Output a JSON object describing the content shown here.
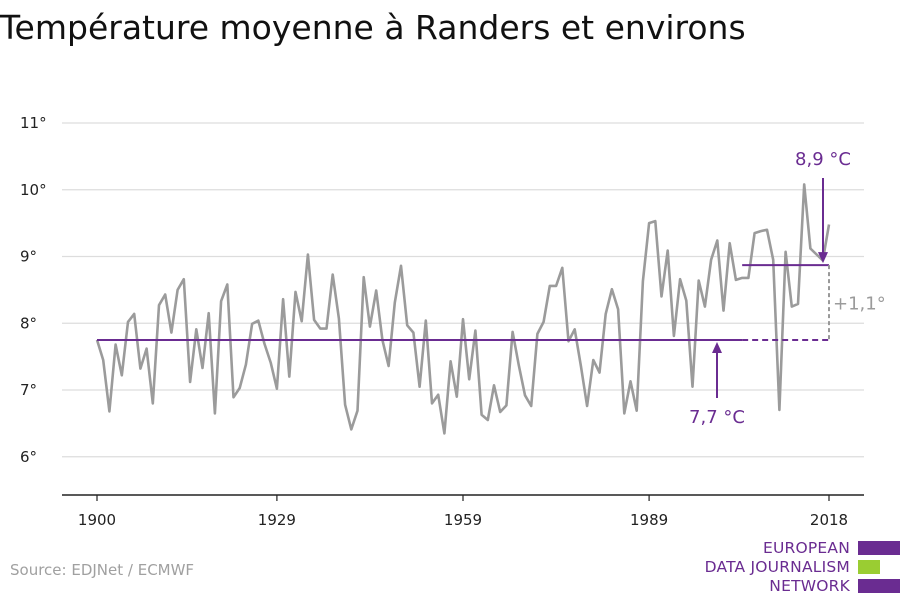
{
  "chart_data": {
    "type": "line",
    "title": "Température moyenne à Randers et environs",
    "x_tick_labels": [
      "1900",
      "1929",
      "1959",
      "1989",
      "2018"
    ],
    "y_tick_labels": [
      "6°",
      "7°",
      "8°",
      "9°",
      "10°",
      "11°"
    ],
    "xlim": [
      1900,
      2018
    ],
    "ylim": [
      5.4,
      11.3
    ],
    "grid": "horizontal",
    "series": [
      {
        "color": "#9b9b9b",
        "x": [
          1900,
          1901,
          1902,
          1903,
          1904,
          1905,
          1906,
          1907,
          1908,
          1909,
          1910,
          1911,
          1912,
          1913,
          1914,
          1915,
          1916,
          1917,
          1918,
          1919,
          1920,
          1921,
          1922,
          1923,
          1924,
          1925,
          1926,
          1927,
          1928,
          1929,
          1930,
          1931,
          1932,
          1933,
          1934,
          1935,
          1936,
          1937,
          1938,
          1939,
          1940,
          1941,
          1942,
          1943,
          1944,
          1945,
          1946,
          1947,
          1948,
          1949,
          1950,
          1951,
          1952,
          1953,
          1954,
          1955,
          1956,
          1957,
          1958,
          1959,
          1960,
          1961,
          1962,
          1963,
          1964,
          1965,
          1966,
          1967,
          1968,
          1969,
          1970,
          1971,
          1972,
          1973,
          1974,
          1975,
          1976,
          1977,
          1978,
          1979,
          1980,
          1981,
          1982,
          1983,
          1984,
          1985,
          1986,
          1987,
          1988,
          1989,
          1990,
          1991,
          1992,
          1993,
          1994,
          1995,
          1996,
          1997,
          1998,
          1999,
          2000,
          2001,
          2002,
          2003,
          2004,
          2005,
          2006,
          2007,
          2008,
          2009,
          2010,
          2011,
          2012,
          2013,
          2014,
          2015,
          2016,
          2017,
          2018
        ],
        "values": [
          7.75,
          7.45,
          6.68,
          7.68,
          7.22,
          8.02,
          8.14,
          7.32,
          7.62,
          6.8,
          8.27,
          8.43,
          7.86,
          8.5,
          8.66,
          7.12,
          7.91,
          7.33,
          8.15,
          6.65,
          8.33,
          8.58,
          6.89,
          7.03,
          7.38,
          7.99,
          8.04,
          7.69,
          7.41,
          7.02,
          8.36,
          7.2,
          8.47,
          8.03,
          9.03,
          8.05,
          7.92,
          7.92,
          8.73,
          8.07,
          6.78,
          6.41,
          6.69,
          8.69,
          7.95,
          8.49,
          7.75,
          7.36,
          8.31,
          8.86,
          7.97,
          7.86,
          7.05,
          8.04,
          6.8,
          6.93,
          6.35,
          7.43,
          6.9,
          8.06,
          7.16,
          7.89,
          6.63,
          6.55,
          7.07,
          6.67,
          6.77,
          7.87,
          7.37,
          6.92,
          6.76,
          7.84,
          8.02,
          8.56,
          8.56,
          8.83,
          7.73,
          7.91,
          7.36,
          6.76,
          7.45,
          7.26,
          8.14,
          8.51,
          8.21,
          6.65,
          7.13,
          6.69,
          8.63,
          9.5,
          9.53,
          8.4,
          9.09,
          7.81,
          8.66,
          8.34,
          7.05,
          8.64,
          8.25,
          8.95,
          9.24,
          8.19,
          9.2,
          8.65,
          8.68,
          8.68,
          9.35,
          9.38,
          9.4,
          8.95,
          6.7,
          9.07,
          8.25,
          8.29,
          10.08,
          9.12,
          9.03,
          8.94,
          9.48
        ]
      }
    ],
    "reference_lines": [
      {
        "label": "7,7 °C",
        "value": 7.75,
        "x_start": 1900,
        "x_end": 2004,
        "dashed_to": 2018,
        "color": "#6a2c91"
      },
      {
        "label": "8,9 °C",
        "value": 8.87,
        "x_start": 2004,
        "x_end": 2018,
        "color": "#6a2c91"
      }
    ],
    "difference_label": "+1,1°"
  },
  "source": "Source: EDJNet / ECMWF",
  "logo": {
    "lines": [
      "EUROPEAN",
      "DATA JOURNALISM",
      "NETWORK"
    ],
    "colors": {
      "purple": "#6a2c91",
      "green": "#9acd32"
    }
  }
}
